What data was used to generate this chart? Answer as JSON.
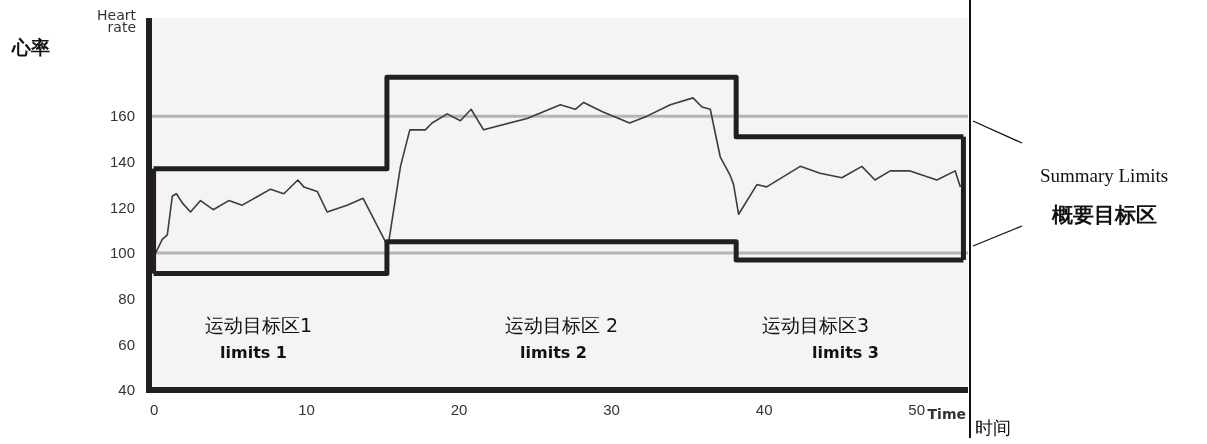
{
  "chart_data": {
    "type": "line",
    "xlabel": "Time",
    "ylabel": "Heart rate",
    "xlim": [
      -0.3,
      53.4
    ],
    "ylim": [
      40,
      203
    ],
    "xticks": [
      0,
      10,
      20,
      30,
      40,
      50
    ],
    "yticks": [
      40,
      60,
      80,
      100,
      120,
      140,
      160
    ],
    "grid": false,
    "marker": "none",
    "line_style": "solid",
    "series": [
      {
        "color": "#3c3c3c",
        "x": [
          0.13,
          0.57,
          0.9,
          1.23,
          1.5,
          1.88,
          2.42,
          3.08,
          3.91,
          4.93,
          5.81,
          7.67,
          8.54,
          9.46,
          9.85,
          10.73,
          11.38,
          12.69,
          13.74,
          15.2,
          15.42,
          16.19,
          16.8,
          17.82,
          18.26,
          19.25,
          20.12,
          20.82,
          21.64,
          24.49,
          26.67,
          27.65,
          28.2,
          29.4,
          31.21,
          32.35,
          33.88,
          35.37,
          35.96,
          36.5,
          37.16,
          37.81,
          38.03,
          38.36,
          39.56,
          40.2,
          42.4,
          43.7,
          45.13,
          46.44,
          47.3,
          48.3,
          49.6,
          51.36,
          52.56,
          52.9
        ],
        "values": [
          100,
          106,
          108,
          125,
          126,
          122,
          118,
          123,
          119,
          123,
          121,
          128,
          126,
          132,
          129,
          127,
          118,
          121,
          124,
          105,
          105,
          138,
          154,
          154,
          157,
          161,
          158,
          163,
          154,
          159,
          165,
          163,
          166,
          162,
          157,
          160,
          165,
          168,
          164,
          163,
          142,
          134,
          130,
          117,
          130,
          129,
          138,
          135,
          133,
          138,
          132,
          136,
          136,
          132,
          136,
          129
        ]
      },
      {
        "type": "step",
        "color": "#231f20",
        "x": [
          0,
          15.3,
          38.2,
          53.1
        ],
        "values": [
          137,
          177,
          151,
          151
        ]
      },
      {
        "type": "step",
        "color": "#231f20",
        "x": [
          0,
          15.3,
          38.2,
          53.1
        ],
        "values": [
          91,
          105,
          97,
          97
        ]
      },
      {
        "type": "line",
        "color": "#231f20",
        "x": [
          0,
          0
        ],
        "values": [
          91,
          137
        ]
      },
      {
        "type": "line",
        "color": "#231f20",
        "x": [
          53.1,
          53.1
        ],
        "values": [
          97,
          151
        ]
      }
    ],
    "ref_lines": [
      {
        "axis": "y",
        "value": 160,
        "color": "#b4b4b4"
      },
      {
        "axis": "y",
        "value": 100,
        "color": "#b4b4b4"
      }
    ],
    "annotations": [
      "运动目标区1",
      "limits 1",
      "运动目标区 2",
      "limits 2",
      "运动目标区3",
      "limits 3",
      "心率",
      "时间",
      "Summary Limits",
      "概要目标区"
    ]
  }
}
